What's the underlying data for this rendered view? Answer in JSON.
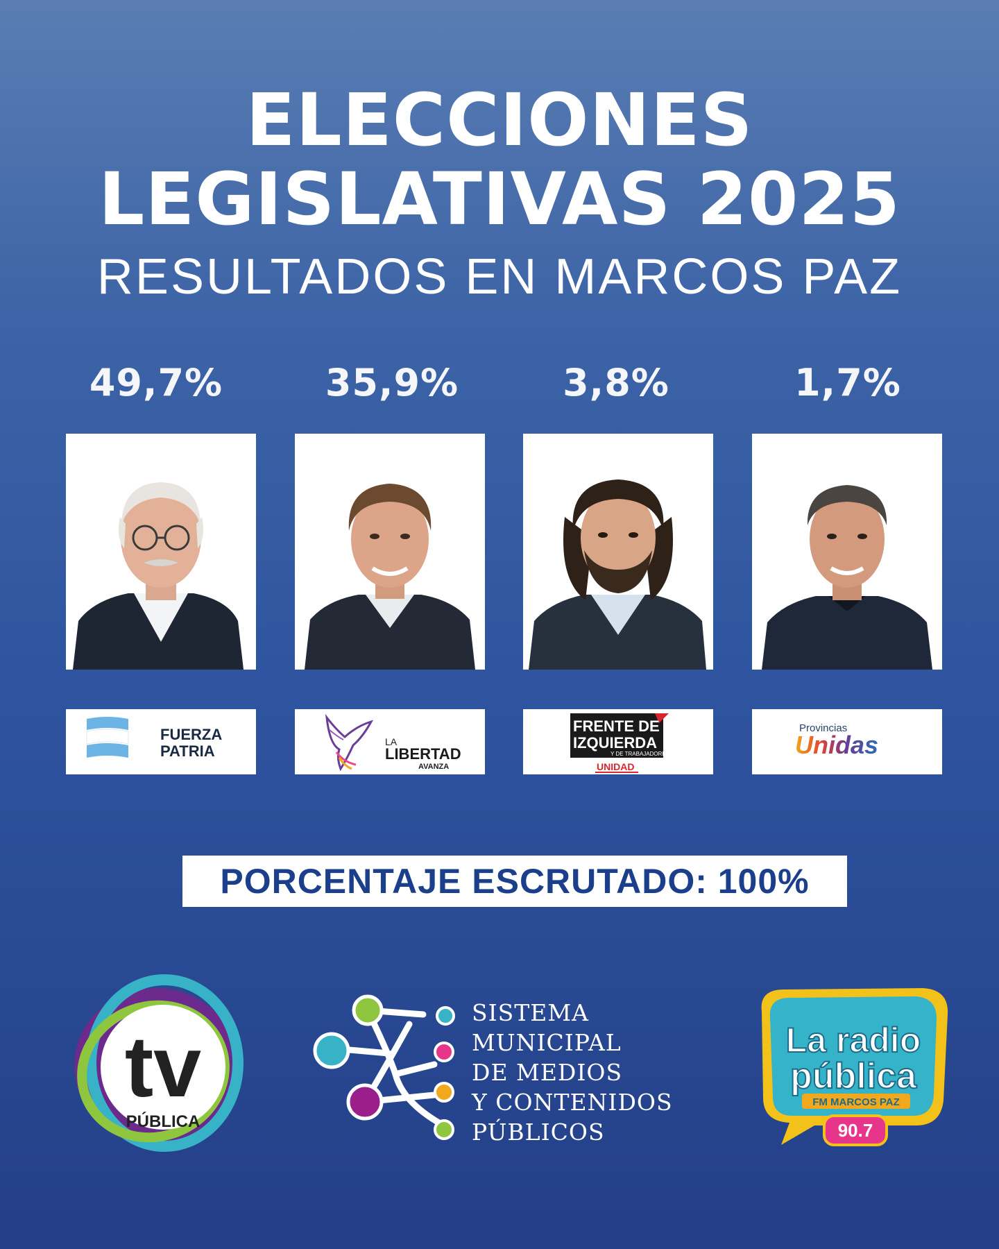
{
  "header": {
    "title_line1": "ELECCIONES",
    "title_line2": "LEGISLATIVAS 2025",
    "subtitle": "RESULTADOS EN MARCOS PAZ"
  },
  "results": [
    {
      "percent": "49,7%",
      "party_name_line1": "FUERZA",
      "party_name_line2": "PATRIA"
    },
    {
      "percent": "35,9%",
      "party_name_line1": "LA",
      "party_name_line2": "LIBERTAD",
      "party_name_line3": "AVANZA"
    },
    {
      "percent": "3,8%",
      "party_name_line1": "FRENTE DE",
      "party_name_line2": "IZQUIERDA",
      "party_name_line3": "Y DE TRABAJADORES",
      "party_name_line4": "UNIDAD"
    },
    {
      "percent": "1,7%",
      "party_name_line1": "Provincias",
      "party_name_line2": "Unidas"
    }
  ],
  "scrutiny": {
    "text": "PORCENTAJE ESCRUTADO: 100%"
  },
  "footer": {
    "tv_logo": {
      "main": "tv",
      "sub": "PÚBLICA"
    },
    "smm_lines": [
      "SISTEMA",
      "MUNICIPAL",
      "DE MEDIOS",
      "Y CONTENIDOS",
      "PÚBLICOS"
    ],
    "radio_logo": {
      "line1": "La radio",
      "line2": "pública",
      "station": "FM MARCOS PAZ",
      "frequency": "90.7"
    }
  },
  "colors": {
    "scrutiny_text": "#1c3f8c",
    "argentina_blue": "#6cb4e4",
    "lla_purple": "#6a3e98",
    "fit_red": "#d7262e"
  },
  "icons": [
    "argentina-flag-icon",
    "libertad-bird-icon",
    "smm-network-icon"
  ]
}
